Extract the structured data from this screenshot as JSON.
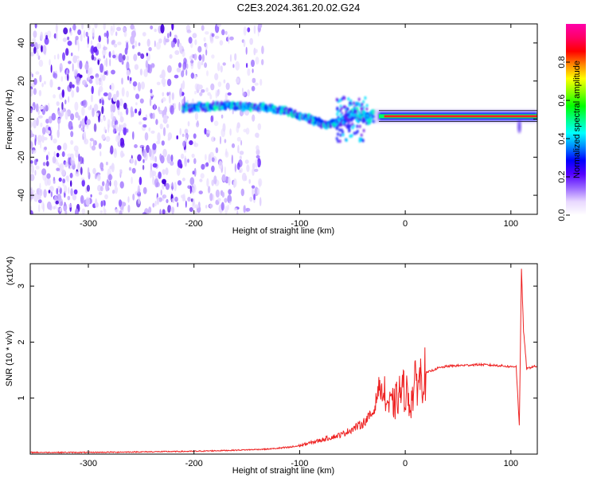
{
  "title": "C2E3.2024.361.20.02.G24",
  "chart_data": [
    {
      "type": "heatmap",
      "xlabel": "Height of straight line (km)",
      "ylabel": "Frequency (Hz)",
      "xlim": [
        -355,
        125
      ],
      "ylim": [
        -50,
        50
      ],
      "xticks": [
        -300,
        -200,
        -100,
        0,
        100
      ],
      "yticks": [
        -40,
        -20,
        0,
        20,
        40
      ],
      "colorbar": {
        "label": "Normalized spectral amplitude",
        "range": [
          0,
          1
        ],
        "ticks": [
          "0.0",
          "0.2",
          "0.4",
          "0.6",
          "0.8"
        ],
        "tick_values": [
          0,
          0.2,
          0.4,
          0.6,
          0.8
        ],
        "colors": [
          "#ffffff",
          "#e8d8ff",
          "#9966ff",
          "#5500ff",
          "#0000ff",
          "#0088ff",
          "#00ffff",
          "#00ff88",
          "#00ff00",
          "#88ff00",
          "#ffff00",
          "#ff8800",
          "#ff0000",
          "#ff0066",
          "#ff00aa"
        ]
      },
      "ridge_center": [
        {
          "x": -210,
          "y": 6
        },
        {
          "x": -160,
          "y": 7
        },
        {
          "x": -130,
          "y": 6
        },
        {
          "x": -110,
          "y": 4
        },
        {
          "x": -90,
          "y": 0
        },
        {
          "x": -75,
          "y": -3
        },
        {
          "x": -60,
          "y": -1
        },
        {
          "x": -50,
          "y": 3
        },
        {
          "x": -40,
          "y": 1
        },
        {
          "x": -25,
          "y": 1
        },
        {
          "x": 0,
          "y": 1.5
        },
        {
          "x": 50,
          "y": 1.5
        },
        {
          "x": 100,
          "y": 1.5
        },
        {
          "x": 125,
          "y": 1.5
        }
      ]
    },
    {
      "type": "line",
      "xlabel": "Height of straight line (km)",
      "ylabel": "SNR (10 * v/v)",
      "y_multiplier": "(x10^4)",
      "xlim": [
        -355,
        125
      ],
      "ylim": [
        0,
        3.4
      ],
      "xticks": [
        -300,
        -200,
        -100,
        0,
        100
      ],
      "yticks": [
        1,
        2,
        3
      ],
      "series": [
        {
          "color": "#ee2222",
          "x": [
            -355,
            -300,
            -250,
            -200,
            -160,
            -130,
            -110,
            -100,
            -90,
            -80,
            -70,
            -60,
            -50,
            -40,
            -30,
            -25,
            -20,
            -15,
            -10,
            -5,
            0,
            5,
            10,
            20,
            30,
            40,
            50,
            60,
            70,
            80,
            90,
            100,
            105,
            108,
            110,
            112,
            115,
            120,
            125
          ],
          "y": [
            0.03,
            0.03,
            0.04,
            0.05,
            0.07,
            0.09,
            0.12,
            0.15,
            0.2,
            0.25,
            0.3,
            0.35,
            0.45,
            0.55,
            0.75,
            1.2,
            1.05,
            0.85,
            0.9,
            1.1,
            1.15,
            0.9,
            1.3,
            1.45,
            1.53,
            1.57,
            1.58,
            1.59,
            1.6,
            1.59,
            1.58,
            1.56,
            1.57,
            0.5,
            3.3,
            2.2,
            1.52,
            1.56,
            1.57
          ]
        }
      ]
    }
  ]
}
